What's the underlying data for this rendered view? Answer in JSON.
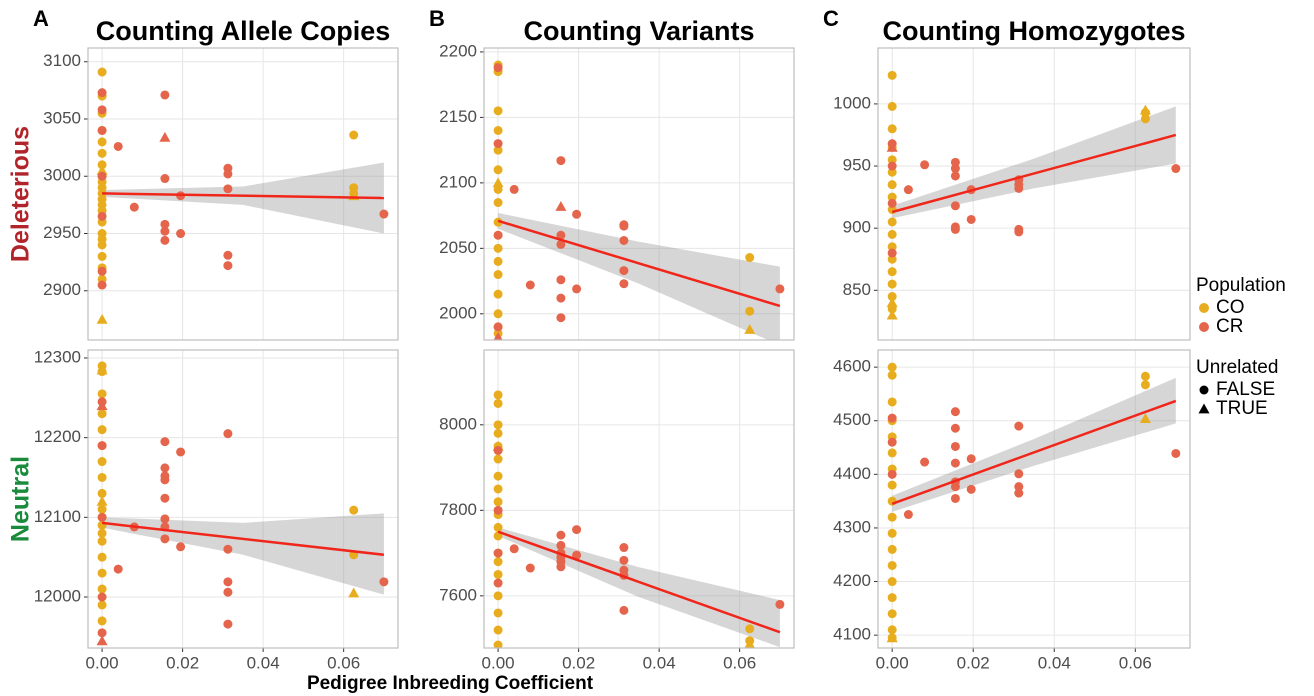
{
  "chart_data": [
    {
      "type": "scatter",
      "tag": "A",
      "title": "Counting Allele Copies",
      "row_label": "Deleterious",
      "row_label_color": "#B0242A",
      "xlim": [
        -0.0035,
        0.0735
      ],
      "xticks": [
        {
          "value": 0,
          "label": "0.00"
        },
        {
          "value": 0.02,
          "label": "0.02"
        },
        {
          "value": 0.04,
          "label": "0.04"
        },
        {
          "value": 0.06,
          "label": "0.06"
        }
      ],
      "ylim": [
        2857,
        3112
      ],
      "yticks": [
        2900,
        2950,
        3000,
        3050,
        3100
      ],
      "series": [
        {
          "population": "CO",
          "unrelated": "FALSE",
          "x": [
            0,
            0,
            0,
            0,
            0,
            0,
            0,
            0,
            0,
            0,
            0,
            0,
            0,
            0,
            0,
            0,
            0,
            0,
            0,
            0,
            0,
            0.0625,
            0.0625,
            0.0625
          ],
          "y": [
            3091,
            3070,
            3055,
            3040,
            3030,
            3020,
            3010,
            3000,
            2995,
            2990,
            2985,
            2980,
            2975,
            2970,
            2960,
            2950,
            2945,
            2940,
            2930,
            2920,
            2910,
            3036,
            2990,
            2985
          ]
        },
        {
          "population": "CO",
          "unrelated": "TRUE",
          "x": [
            0,
            0,
            0.0625
          ],
          "y": [
            2875,
            3005,
            2983
          ]
        },
        {
          "population": "CR",
          "unrelated": "FALSE",
          "x": [
            0,
            0,
            0,
            0,
            0,
            0,
            0,
            0.004,
            0.008,
            0.0156,
            0.0156,
            0.0156,
            0.0156,
            0.0156,
            0.0195,
            0.0195,
            0.03125,
            0.03125,
            0.03125,
            0.03125,
            0.03125,
            0.07
          ],
          "y": [
            3073,
            3058,
            3040,
            3000,
            2965,
            2917,
            2905,
            3026,
            2973,
            3071,
            2998,
            2958,
            2952,
            2944,
            2983,
            2950,
            3007,
            3002,
            2989,
            2931,
            2922,
            2967
          ]
        },
        {
          "population": "CR",
          "unrelated": "TRUE",
          "x": [
            0.0156
          ],
          "y": [
            3034
          ]
        }
      ],
      "fit": {
        "x": [
          0,
          0.07
        ],
        "y": [
          2985,
          2981
        ]
      },
      "band": {
        "x": [
          0,
          0.035,
          0.07
        ],
        "lower": [
          2982,
          2975,
          2950
        ],
        "upper": [
          2988,
          2991,
          3012
        ]
      }
    },
    {
      "type": "scatter",
      "tag": "B",
      "title": "Counting Variants",
      "xlim": [
        -0.0035,
        0.0735
      ],
      "xticks": [
        {
          "value": 0,
          "label": "0.00"
        },
        {
          "value": 0.02,
          "label": "0.02"
        },
        {
          "value": 0.04,
          "label": "0.04"
        },
        {
          "value": 0.06,
          "label": "0.06"
        }
      ],
      "ylim": [
        1980,
        2203
      ],
      "yticks": [
        2000,
        2050,
        2100,
        2150,
        2200
      ],
      "series": [
        {
          "population": "CO",
          "unrelated": "FALSE",
          "x": [
            0,
            0,
            0,
            0,
            0,
            0,
            0,
            0,
            0,
            0,
            0,
            0,
            0,
            0,
            0,
            0,
            0,
            0.0625,
            0.0625
          ],
          "y": [
            2190,
            2185,
            2155,
            2140,
            2125,
            2110,
            2095,
            2085,
            2070,
            2060,
            2050,
            2040,
            2030,
            2015,
            2000,
            1990,
            1985,
            2043,
            2002
          ]
        },
        {
          "population": "CO",
          "unrelated": "TRUE",
          "x": [
            0.0625,
            0
          ],
          "y": [
            1988,
            2100
          ]
        },
        {
          "population": "CR",
          "unrelated": "FALSE",
          "x": [
            0,
            0,
            0,
            0,
            0.004,
            0.008,
            0.0156,
            0.0156,
            0.0156,
            0.0156,
            0.0156,
            0.0156,
            0.0195,
            0.0195,
            0.03125,
            0.03125,
            0.03125,
            0.03125,
            0.03125,
            0.07
          ],
          "y": [
            2188,
            2130,
            2060,
            1990,
            2095,
            2022,
            2117,
            2060,
            2053,
            2026,
            2012,
            1997,
            2076,
            2019,
            2068,
            2067,
            2056,
            2033,
            2023,
            2019
          ]
        },
        {
          "population": "CR",
          "unrelated": "TRUE",
          "x": [
            0.0156,
            0
          ],
          "y": [
            2082,
            1982
          ]
        }
      ],
      "fit": {
        "x": [
          0,
          0.07
        ],
        "y": [
          2071,
          2006
        ]
      },
      "band": {
        "x": [
          0,
          0.035,
          0.07
        ],
        "lower": [
          2065,
          2023,
          1976
        ],
        "upper": [
          2077,
          2055,
          2036
        ]
      }
    },
    {
      "type": "scatter",
      "tag": "C",
      "title": "Counting Homozygotes",
      "xlim": [
        -0.0035,
        0.0735
      ],
      "xticks": [
        {
          "value": 0,
          "label": "0.00"
        },
        {
          "value": 0.02,
          "label": "0.02"
        },
        {
          "value": 0.04,
          "label": "0.04"
        },
        {
          "value": 0.06,
          "label": "0.06"
        }
      ],
      "ylim": [
        810,
        1045
      ],
      "yticks": [
        850,
        900,
        950,
        1000
      ],
      "series": [
        {
          "population": "CO",
          "unrelated": "FALSE",
          "x": [
            0,
            0,
            0,
            0,
            0,
            0,
            0,
            0,
            0,
            0,
            0,
            0,
            0,
            0,
            0,
            0,
            0,
            0.0625,
            0.0625
          ],
          "y": [
            1023,
            998,
            980,
            965,
            955,
            945,
            935,
            925,
            915,
            905,
            895,
            885,
            875,
            865,
            855,
            845,
            835,
            993,
            988
          ]
        },
        {
          "population": "CO",
          "unrelated": "TRUE",
          "x": [
            0,
            0.0625,
            0
          ],
          "y": [
            830,
            995,
            840
          ]
        },
        {
          "population": "CR",
          "unrelated": "FALSE",
          "x": [
            0,
            0,
            0,
            0,
            0.004,
            0.008,
            0.0156,
            0.0156,
            0.0156,
            0.0156,
            0.0156,
            0.0156,
            0.0195,
            0.0195,
            0.03125,
            0.03125,
            0.03125,
            0.03125,
            0.03125,
            0.07
          ],
          "y": [
            968,
            950,
            920,
            880,
            931,
            951,
            953,
            948,
            942,
            918,
            901,
            899,
            931,
            907,
            939,
            935,
            932,
            899,
            897,
            948
          ]
        },
        {
          "population": "CR",
          "unrelated": "TRUE",
          "x": [
            0
          ],
          "y": [
            965
          ]
        }
      ],
      "fit": {
        "x": [
          0,
          0.07
        ],
        "y": [
          913,
          975
        ]
      },
      "band": {
        "x": [
          0,
          0.035,
          0.07
        ],
        "lower": [
          908,
          932,
          952
        ],
        "upper": [
          918,
          956,
          998
        ]
      }
    },
    {
      "type": "scatter",
      "row_label": "Neutral",
      "row_label_color": "#1A8A3C",
      "xtick_labels": true,
      "xlim": [
        -0.0035,
        0.0735
      ],
      "xticks": [
        {
          "value": 0,
          "label": "0.00"
        },
        {
          "value": 0.02,
          "label": "0.02"
        },
        {
          "value": 0.04,
          "label": "0.04"
        },
        {
          "value": 0.06,
          "label": "0.06"
        }
      ],
      "ylim": [
        11936,
        12310
      ],
      "yticks": [
        12000,
        12100,
        12200,
        12300
      ],
      "series": [
        {
          "population": "CO",
          "unrelated": "FALSE",
          "x": [
            0,
            0,
            0,
            0,
            0,
            0,
            0,
            0,
            0,
            0,
            0,
            0,
            0,
            0,
            0,
            0,
            0,
            0,
            0,
            0.0625,
            0.0625
          ],
          "y": [
            12290,
            12283,
            12255,
            12230,
            12210,
            12190,
            12170,
            12150,
            12130,
            12110,
            12100,
            12090,
            12080,
            12070,
            12050,
            12030,
            12010,
            11990,
            11970,
            12109,
            12053
          ]
        },
        {
          "population": "CO",
          "unrelated": "TRUE",
          "x": [
            0.0625,
            0,
            0
          ],
          "y": [
            12005,
            12285,
            12120
          ]
        },
        {
          "population": "CR",
          "unrelated": "FALSE",
          "x": [
            0,
            0,
            0,
            0,
            0,
            0.004,
            0.008,
            0.0156,
            0.0156,
            0.0156,
            0.0156,
            0.0156,
            0.0156,
            0.0156,
            0.0156,
            0.0195,
            0.0195,
            0.03125,
            0.03125,
            0.03125,
            0.03125,
            0.03125,
            0.07
          ],
          "y": [
            12245,
            12190,
            12100,
            12000,
            11955,
            12035,
            12088,
            12195,
            12162,
            12152,
            12147,
            12124,
            12098,
            12088,
            12073,
            12182,
            12063,
            12205,
            12060,
            12019,
            12006,
            11966,
            12019
          ]
        },
        {
          "population": "CR",
          "unrelated": "TRUE",
          "x": [
            0,
            0
          ],
          "y": [
            11945,
            12240
          ]
        }
      ],
      "fit": {
        "x": [
          0,
          0.07
        ],
        "y": [
          12093,
          12053
        ]
      },
      "band": {
        "x": [
          0,
          0.035,
          0.07
        ],
        "lower": [
          12087,
          12053,
          12003
        ],
        "upper": [
          12100,
          12093,
          12105
        ]
      }
    },
    {
      "type": "scatter",
      "xtick_labels": true,
      "xlim": [
        -0.0035,
        0.0735
      ],
      "xticks": [
        {
          "value": 0,
          "label": "0.00"
        },
        {
          "value": 0.02,
          "label": "0.02"
        },
        {
          "value": 0.04,
          "label": "0.04"
        },
        {
          "value": 0.06,
          "label": "0.06"
        }
      ],
      "ylim": [
        7478,
        8175
      ],
      "yticks": [
        7600,
        7800,
        8000
      ],
      "series": [
        {
          "population": "CO",
          "unrelated": "FALSE",
          "x": [
            0,
            0,
            0,
            0,
            0,
            0,
            0,
            0,
            0,
            0,
            0,
            0,
            0,
            0,
            0,
            0,
            0,
            0,
            0,
            0.0625,
            0.0625
          ],
          "y": [
            8070,
            8050,
            8000,
            7980,
            7950,
            7920,
            7880,
            7850,
            7820,
            7790,
            7760,
            7740,
            7700,
            7680,
            7650,
            7600,
            7560,
            7520,
            7485,
            7523,
            7495
          ]
        },
        {
          "population": "CO",
          "unrelated": "TRUE",
          "x": [
            0.0625,
            0
          ],
          "y": [
            7487,
            7950
          ]
        },
        {
          "population": "CR",
          "unrelated": "FALSE",
          "x": [
            0,
            0,
            0,
            0,
            0.004,
            0.008,
            0.0156,
            0.0156,
            0.0156,
            0.0156,
            0.0156,
            0.0156,
            0.0195,
            0.0195,
            0.03125,
            0.03125,
            0.03125,
            0.03125,
            0.03125,
            0.07
          ],
          "y": [
            7940,
            7800,
            7700,
            7630,
            7710,
            7665,
            7742,
            7718,
            7700,
            7690,
            7680,
            7668,
            7755,
            7695,
            7713,
            7683,
            7660,
            7648,
            7566,
            7580
          ]
        }
      ],
      "fit": {
        "x": [
          0,
          0.07
        ],
        "y": [
          7750,
          7515
        ]
      },
      "band": {
        "x": [
          0,
          0.035,
          0.07
        ],
        "lower": [
          7740,
          7597,
          7480
        ],
        "upper": [
          7760,
          7667,
          7590
        ]
      }
    },
    {
      "type": "scatter",
      "xtick_labels": true,
      "xlim": [
        -0.0035,
        0.0735
      ],
      "xticks": [
        {
          "value": 0,
          "label": "0.00"
        },
        {
          "value": 0.02,
          "label": "0.02"
        },
        {
          "value": 0.04,
          "label": "0.04"
        },
        {
          "value": 0.06,
          "label": "0.06"
        }
      ],
      "ylim": [
        4076,
        4632
      ],
      "yticks": [
        4100,
        4200,
        4300,
        4400,
        4500,
        4600
      ],
      "series": [
        {
          "population": "CO",
          "unrelated": "FALSE",
          "x": [
            0,
            0,
            0,
            0,
            0,
            0,
            0,
            0,
            0,
            0,
            0,
            0,
            0,
            0,
            0,
            0,
            0,
            0,
            0.0625,
            0.0625
          ],
          "y": [
            4600,
            4585,
            4535,
            4500,
            4470,
            4440,
            4410,
            4380,
            4350,
            4320,
            4290,
            4260,
            4230,
            4200,
            4170,
            4140,
            4110,
            4095,
            4583,
            4567
          ]
        },
        {
          "population": "CO",
          "unrelated": "TRUE",
          "x": [
            0.0625,
            0
          ],
          "y": [
            4504,
            4095
          ]
        },
        {
          "population": "CR",
          "unrelated": "FALSE",
          "x": [
            0,
            0,
            0,
            0.004,
            0.008,
            0.0156,
            0.0156,
            0.0156,
            0.0156,
            0.0156,
            0.0156,
            0.0156,
            0.0195,
            0.0195,
            0.03125,
            0.03125,
            0.03125,
            0.03125,
            0.07
          ],
          "y": [
            4505,
            4460,
            4400,
            4325,
            4423,
            4517,
            4486,
            4452,
            4421,
            4386,
            4377,
            4355,
            4429,
            4372,
            4490,
            4401,
            4377,
            4365,
            4439
          ]
        }
      ],
      "fit": {
        "x": [
          0,
          0.07
        ],
        "y": [
          4345,
          4537
        ]
      },
      "band": {
        "x": [
          0,
          0.035,
          0.07
        ],
        "lower": [
          4330,
          4416,
          4495
        ],
        "upper": [
          4360,
          4466,
          4580
        ]
      }
    }
  ],
  "xlabel": "Pedigree Inbreeding Coefficient",
  "legend": {
    "population": {
      "title": "Population",
      "items": [
        {
          "name": "CO",
          "color": "#E8AD1E"
        },
        {
          "name": "CR",
          "color": "#E5654C"
        }
      ]
    },
    "unrelated": {
      "title": "Unrelated",
      "items": [
        {
          "name": "FALSE",
          "shape": "circle"
        },
        {
          "name": "TRUE",
          "shape": "triangle"
        }
      ]
    }
  },
  "fit_color": "#F0261B"
}
